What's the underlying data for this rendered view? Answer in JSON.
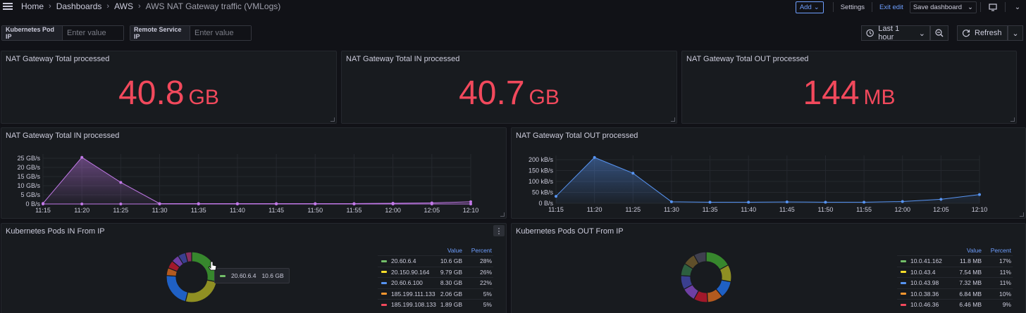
{
  "breadcrumb": [
    "Home",
    "Dashboards",
    "AWS",
    "AWS NAT Gateway traffic (VMLogs)"
  ],
  "toolbar": {
    "add": "Add",
    "settings": "Settings",
    "exit_edit": "Exit edit",
    "save_dashboard": "Save dashboard"
  },
  "variables": [
    {
      "label": "Kubernetes Pod IP",
      "placeholder": "Enter value"
    },
    {
      "label": "Remote Service IP",
      "placeholder": "Enter value"
    }
  ],
  "time_range": "Last 1 hour",
  "refresh_label": "Refresh",
  "stats": [
    {
      "title": "NAT Gateway Total processed",
      "value": "40.8",
      "unit": "GB"
    },
    {
      "title": "NAT Gateway Total IN processed",
      "value": "40.7",
      "unit": "GB"
    },
    {
      "title": "NAT Gateway Total OUT processed",
      "value": "144",
      "unit": "MB"
    }
  ],
  "colors": {
    "stat": "#f2495c",
    "accent": "#6e9fff",
    "in_series": "#c279e8",
    "out_series": "#5794f2"
  },
  "chart_data": [
    {
      "type": "area",
      "title": "NAT Gateway Total IN processed",
      "x": [
        "11:15",
        "11:20",
        "11:25",
        "11:30",
        "11:35",
        "11:40",
        "11:45",
        "11:50",
        "11:55",
        "12:00",
        "12:05",
        "12:10"
      ],
      "y_ticks": [
        "0 B/s",
        "5 GB/s",
        "10 GB/s",
        "15 GB/s",
        "20 GB/s",
        "25 GB/s"
      ],
      "ylim": [
        0,
        25
      ],
      "unit": "GB/s",
      "series": [
        {
          "values": [
            0.3,
            25.5,
            11.8,
            0.2,
            0.2,
            0.2,
            0.2,
            0.2,
            0.2,
            0.4,
            0.6,
            1.2
          ]
        },
        {
          "values": [
            0,
            0,
            0,
            0,
            0,
            0,
            0,
            0,
            0,
            0,
            0,
            0
          ]
        }
      ]
    },
    {
      "type": "area",
      "title": "NAT Gateway Total OUT processed",
      "x": [
        "11:15",
        "11:20",
        "11:25",
        "11:30",
        "11:35",
        "11:40",
        "11:45",
        "11:50",
        "11:55",
        "12:00",
        "12:05",
        "12:10"
      ],
      "y_ticks": [
        "0 B/s",
        "50 kB/s",
        "100 kB/s",
        "150 kB/s",
        "200 kB/s"
      ],
      "ylim": [
        0,
        200
      ],
      "unit": "kB/s",
      "series": [
        {
          "values": [
            32,
            210,
            138,
            7,
            5,
            5,
            6,
            5,
            5,
            8,
            18,
            40
          ]
        }
      ]
    },
    {
      "type": "pie",
      "title": "Kubernetes Pods IN From IP",
      "columns": [
        "Value",
        "Percent"
      ],
      "rows": [
        {
          "label": "20.60.6.4",
          "value": "10.6 GB",
          "percent": "28%",
          "color": "#73bf69"
        },
        {
          "label": "20.150.90.164",
          "value": "9.79 GB",
          "percent": "26%",
          "color": "#fade2a"
        },
        {
          "label": "20.60.6.100",
          "value": "8.30 GB",
          "percent": "22%",
          "color": "#5794f2"
        },
        {
          "label": "185.199.111.133",
          "value": "2.06 GB",
          "percent": "5%",
          "color": "#ff9830"
        },
        {
          "label": "185.199.108.133",
          "value": "1.89 GB",
          "percent": "5%",
          "color": "#f2495c"
        }
      ],
      "slice_colors": [
        "#37872d",
        "#8f8f23",
        "#1f60c4",
        "#b35a1f",
        "#a1182b",
        "#6e3fa3",
        "#3a3f8f",
        "#8a2f5f"
      ],
      "slice_values": [
        28,
        26,
        22,
        5,
        5,
        5,
        5,
        4
      ],
      "tooltip": {
        "label": "20.60.6.4",
        "value": "10.6 GB"
      }
    },
    {
      "type": "pie",
      "title": "Kubernetes Pods OUT From IP",
      "columns": [
        "Value",
        "Percent"
      ],
      "rows": [
        {
          "label": "10.0.41.162",
          "value": "11.8 MB",
          "percent": "17%",
          "color": "#73bf69"
        },
        {
          "label": "10.0.43.4",
          "value": "7.54 MB",
          "percent": "11%",
          "color": "#fade2a"
        },
        {
          "label": "10.0.43.98",
          "value": "7.32 MB",
          "percent": "11%",
          "color": "#5794f2"
        },
        {
          "label": "10.0.38.36",
          "value": "6.84 MB",
          "percent": "10%",
          "color": "#ff9830"
        },
        {
          "label": "10.0.46.36",
          "value": "6.46 MB",
          "percent": "9%",
          "color": "#f2495c"
        }
      ],
      "slice_colors": [
        "#37872d",
        "#8f8f23",
        "#1f60c4",
        "#b35a1f",
        "#a1182b",
        "#6e3fa3",
        "#3a3f8f",
        "#2d5f3f",
        "#5f4f2a",
        "#3f3f4f"
      ],
      "slice_values": [
        17,
        11,
        11,
        10,
        9,
        9,
        9,
        8,
        8,
        8
      ]
    }
  ]
}
